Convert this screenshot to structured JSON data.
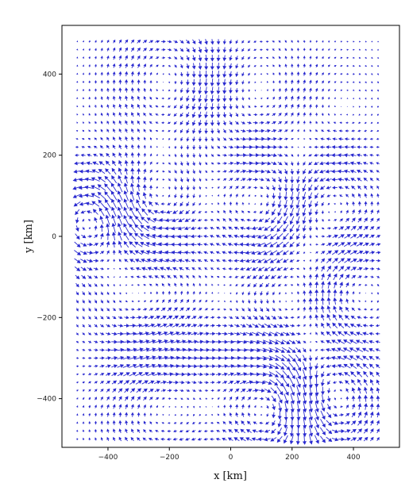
{
  "chart_data": {
    "type": "quiver",
    "xlabel": "x [km]",
    "ylabel": "y [km]",
    "xlim": [
      -550,
      550
    ],
    "ylim": [
      -520,
      520
    ],
    "xticks": [
      -400,
      -200,
      0,
      200,
      400
    ],
    "yticks": [
      -400,
      -200,
      0,
      200,
      400
    ],
    "grid": false,
    "arrow_color": "#2a2ad0",
    "field": {
      "x_range": [
        -500,
        490
      ],
      "y_range": [
        -500,
        490
      ],
      "spacing_km": 20,
      "description_of_units": "arrow components in arbitrary velocity units"
    }
  }
}
